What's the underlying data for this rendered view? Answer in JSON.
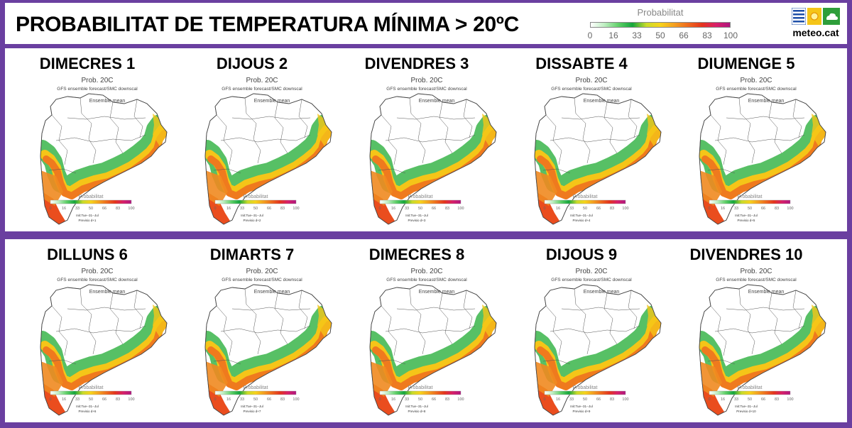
{
  "title": "PROBABILITAT DE TEMPERATURA MÍNIMA > 20ºC",
  "legend": {
    "title": "Probabilitat",
    "ticks": [
      "0",
      "16",
      "33",
      "50",
      "66",
      "83",
      "100"
    ],
    "colors": [
      "#ffffff",
      "#bdeec0",
      "#5fd068",
      "#14a63c",
      "#c9dc2a",
      "#f7d31b",
      "#f4a020",
      "#ee6a1e",
      "#e4341d",
      "#d81f6a",
      "#b0167e"
    ]
  },
  "logo": {
    "text": "meteo.cat"
  },
  "map_labels": {
    "title": "Prob. 20C",
    "subtitle": "GFS ensemble forecast/SMC downscal",
    "ensemble": "Ensemble mean",
    "legend_title": "Probabilitat",
    "init": "Init:Tue--31--Jul"
  },
  "days": [
    {
      "label": "DIMECRES 1",
      "forecast": "Previsio d+1"
    },
    {
      "label": "DIJOUS 2",
      "forecast": "Previsio d+2"
    },
    {
      "label": "DIVENDRES 3",
      "forecast": "Previsio d+3"
    },
    {
      "label": "DISSABTE  4",
      "forecast": "Previsio d+4"
    },
    {
      "label": "DIUMENGE 5",
      "forecast": "Previsio d+5"
    },
    {
      "label": "DILLUNS 6",
      "forecast": "Previsio d+6"
    },
    {
      "label": "DIMARTS 7",
      "forecast": "Previsio d+7"
    },
    {
      "label": "DIMECRES 8",
      "forecast": "Previsio d+8"
    },
    {
      "label": "DIJOUS 9",
      "forecast": "Previsio d+9"
    },
    {
      "label": "DIVENDRES 10",
      "forecast": "Previsio d+10"
    }
  ]
}
